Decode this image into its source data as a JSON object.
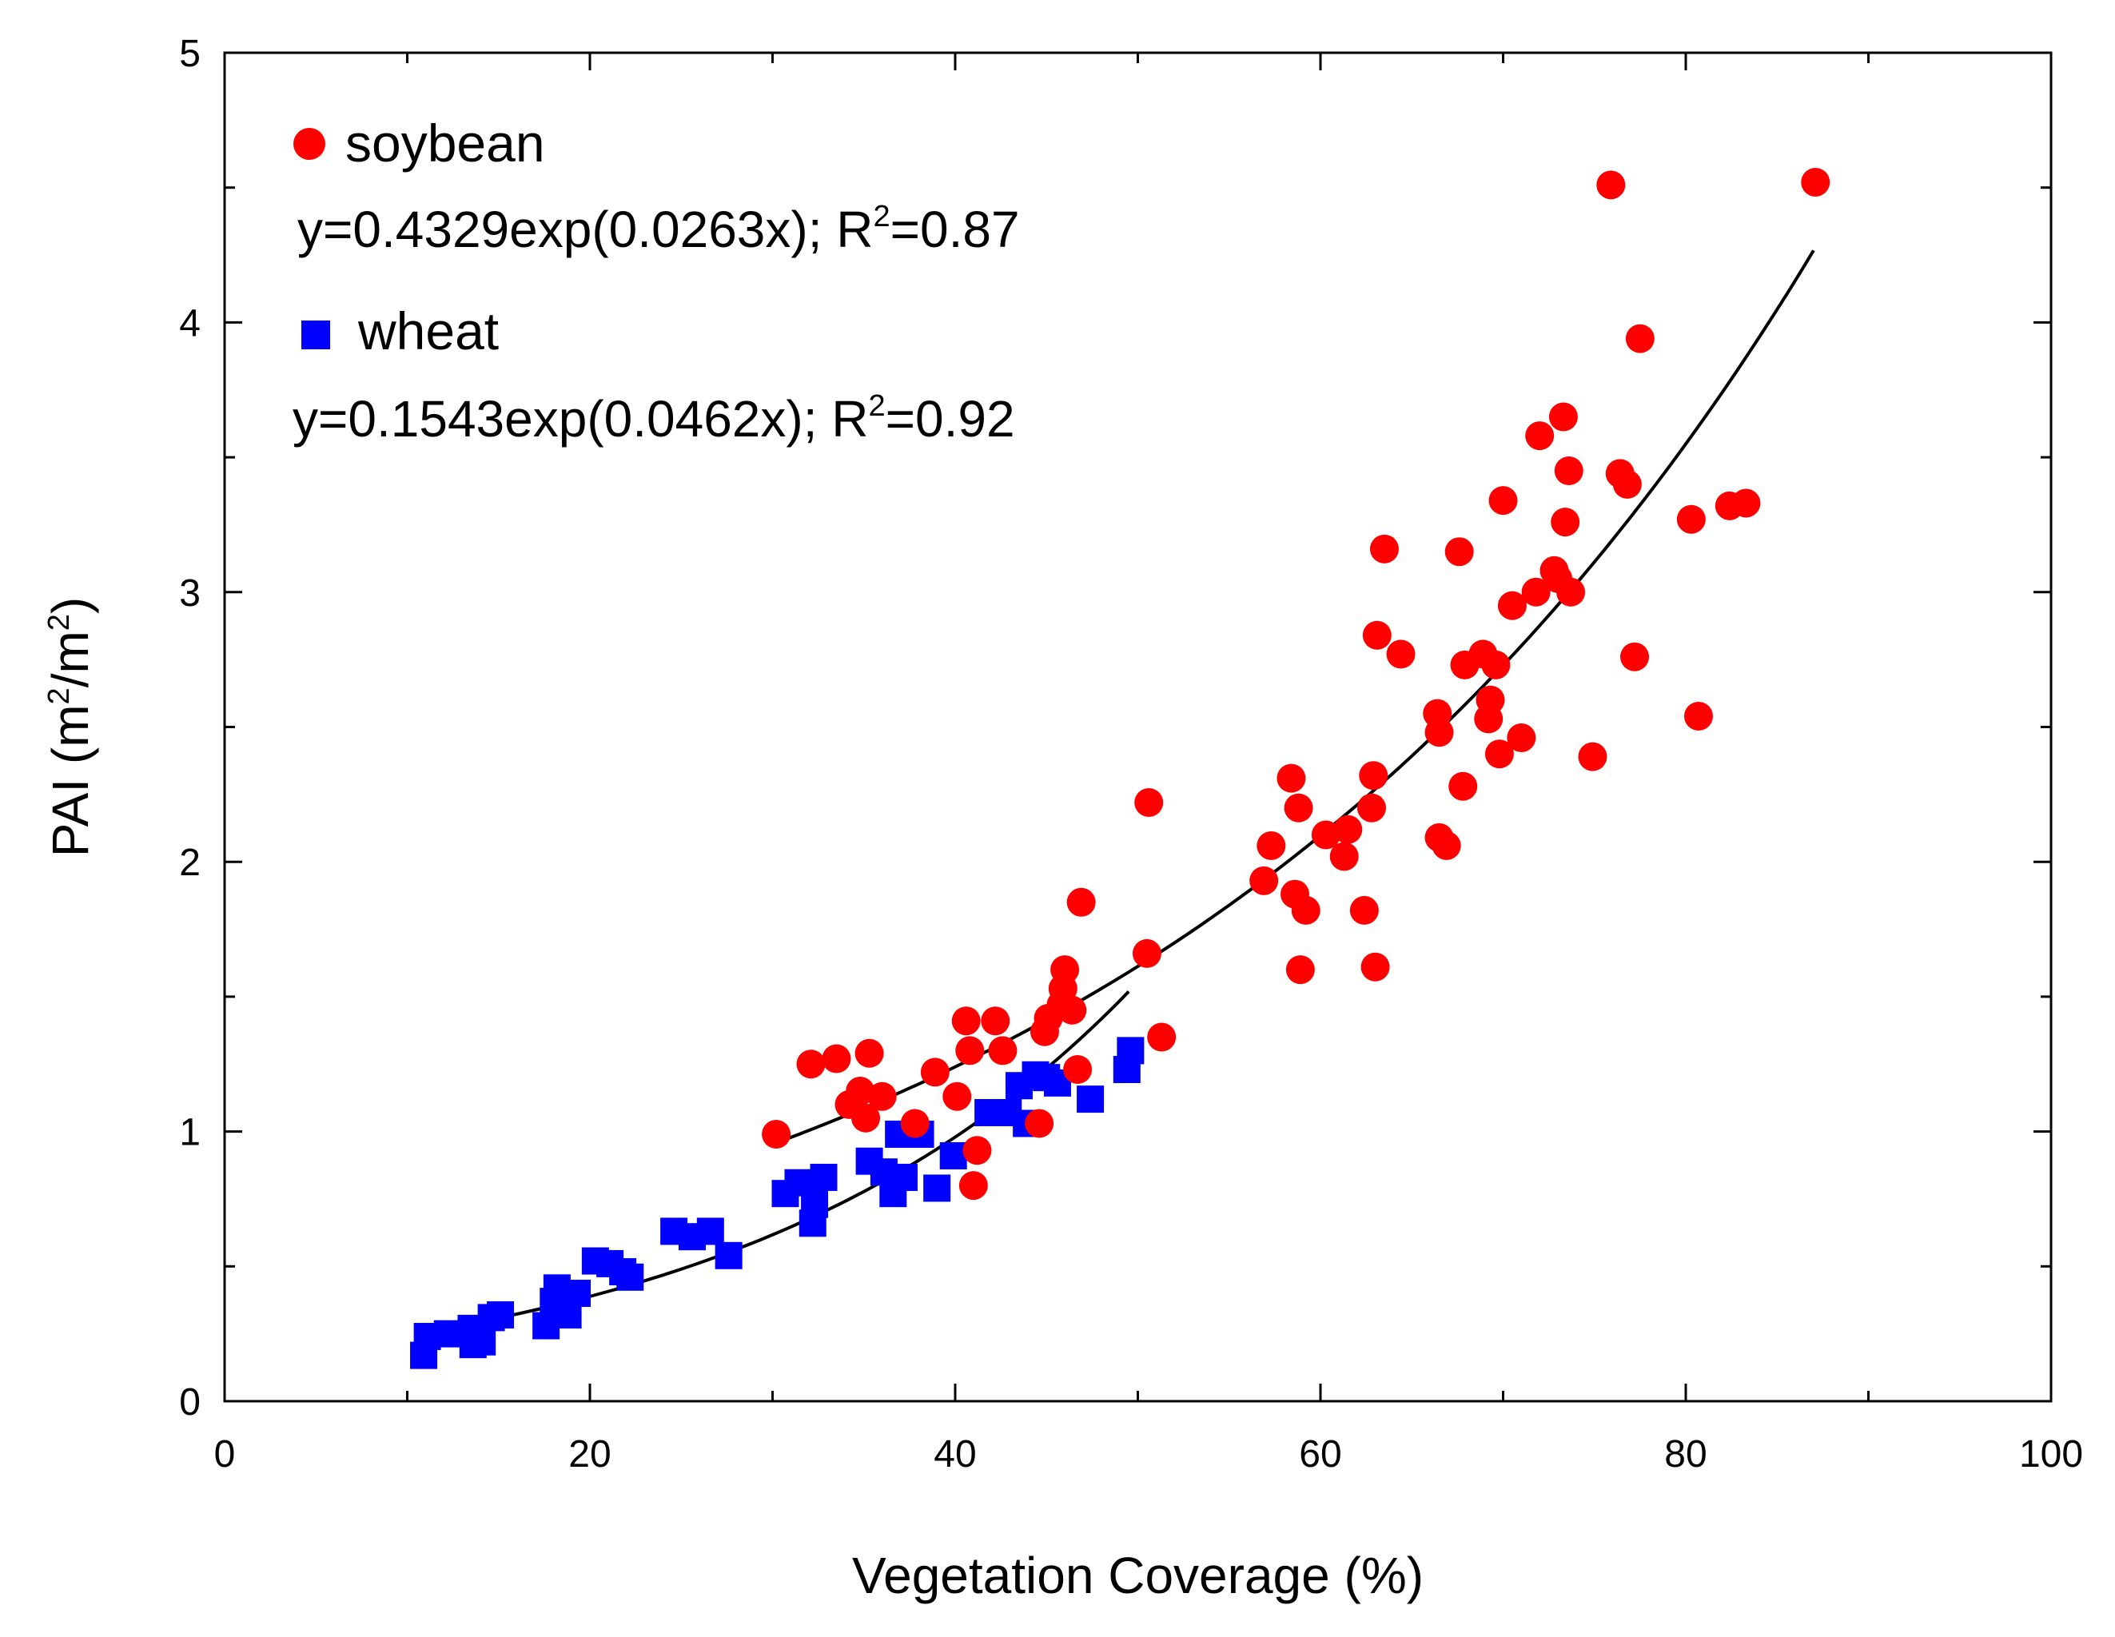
{
  "chart_data": {
    "type": "scatter",
    "title": "",
    "xlabel": "Vegetation Coverage (%)",
    "ylabel_main": "PAI (m",
    "ylabel_sup1": "2",
    "ylabel_mid": "/m",
    "ylabel_sup2": "2",
    "ylabel_end": ")",
    "xlim": [
      0,
      100
    ],
    "ylim": [
      0,
      5
    ],
    "x_ticks": [
      0,
      20,
      40,
      60,
      80,
      100
    ],
    "y_ticks": [
      0,
      1,
      2,
      3,
      4,
      5
    ],
    "x_minor_step": 10,
    "y_minor_step": 0.5,
    "legend_position": "top-left",
    "series": [
      {
        "name": "soybean",
        "marker": "circle",
        "color": "#ff0000",
        "fit": {
          "equation_prefix": "y=0.4329exp(0.0263x); R",
          "r2_sup": "2",
          "equation_suffix": "=0.87",
          "a": 0.4329,
          "b": 0.0263,
          "x_range": [
            30,
            87
          ]
        },
        "points": [
          [
            30.2,
            0.99
          ],
          [
            32.1,
            1.25
          ],
          [
            33.5,
            1.27
          ],
          [
            34.2,
            1.1
          ],
          [
            34.8,
            1.15
          ],
          [
            35.1,
            1.05
          ],
          [
            35.3,
            1.29
          ],
          [
            36.0,
            1.13
          ],
          [
            37.8,
            1.03
          ],
          [
            38.9,
            1.22
          ],
          [
            40.1,
            1.13
          ],
          [
            40.6,
            1.41
          ],
          [
            40.8,
            1.3
          ],
          [
            41.0,
            0.8
          ],
          [
            41.2,
            0.93
          ],
          [
            42.2,
            1.41
          ],
          [
            42.6,
            1.3
          ],
          [
            44.6,
            1.03
          ],
          [
            44.9,
            1.37
          ],
          [
            45.1,
            1.42
          ],
          [
            45.8,
            1.47
          ],
          [
            45.9,
            1.53
          ],
          [
            46.0,
            1.6
          ],
          [
            46.4,
            1.45
          ],
          [
            46.7,
            1.23
          ],
          [
            46.9,
            1.85
          ],
          [
            50.5,
            1.66
          ],
          [
            50.6,
            2.22
          ],
          [
            51.3,
            1.35
          ],
          [
            56.9,
            1.93
          ],
          [
            57.3,
            2.06
          ],
          [
            58.4,
            2.31
          ],
          [
            58.6,
            1.88
          ],
          [
            58.8,
            2.2
          ],
          [
            58.9,
            1.6
          ],
          [
            59.2,
            1.82
          ],
          [
            60.3,
            2.1
          ],
          [
            61.3,
            2.02
          ],
          [
            61.5,
            2.12
          ],
          [
            62.4,
            1.82
          ],
          [
            62.8,
            2.2
          ],
          [
            62.9,
            2.32
          ],
          [
            63.0,
            1.61
          ],
          [
            63.1,
            2.84
          ],
          [
            63.5,
            3.16
          ],
          [
            64.4,
            2.77
          ],
          [
            66.4,
            2.55
          ],
          [
            66.5,
            2.48
          ],
          [
            66.5,
            2.09
          ],
          [
            66.9,
            2.06
          ],
          [
            67.6,
            3.15
          ],
          [
            67.8,
            2.28
          ],
          [
            67.9,
            2.73
          ],
          [
            68.9,
            2.77
          ],
          [
            69.2,
            2.53
          ],
          [
            69.3,
            2.6
          ],
          [
            69.6,
            2.73
          ],
          [
            69.8,
            2.4
          ],
          [
            70.0,
            3.34
          ],
          [
            70.5,
            2.95
          ],
          [
            71.0,
            2.46
          ],
          [
            71.8,
            3.0
          ],
          [
            72.0,
            3.58
          ],
          [
            72.8,
            3.08
          ],
          [
            73.0,
            3.05
          ],
          [
            73.3,
            3.65
          ],
          [
            73.4,
            3.26
          ],
          [
            73.6,
            3.45
          ],
          [
            73.7,
            3.0
          ],
          [
            74.9,
            2.39
          ],
          [
            75.9,
            4.51
          ],
          [
            76.4,
            3.44
          ],
          [
            76.8,
            3.4
          ],
          [
            77.2,
            2.76
          ],
          [
            77.5,
            3.94
          ],
          [
            80.3,
            3.27
          ],
          [
            80.7,
            2.54
          ],
          [
            82.4,
            3.32
          ],
          [
            83.3,
            3.33
          ],
          [
            87.1,
            4.52
          ]
        ]
      },
      {
        "name": "wheat",
        "marker": "square",
        "color": "#0000ff",
        "fit": {
          "equation_prefix": "y=0.1543exp(0.0462x); R",
          "r2_sup": "2",
          "equation_suffix": "=0.92",
          "a": 0.1543,
          "b": 0.0462,
          "x_range": [
            11,
            49.5
          ]
        },
        "points": [
          [
            10.9,
            0.17
          ],
          [
            11.1,
            0.24
          ],
          [
            12.2,
            0.25
          ],
          [
            13.5,
            0.27
          ],
          [
            13.6,
            0.21
          ],
          [
            14.1,
            0.22
          ],
          [
            14.6,
            0.31
          ],
          [
            15.1,
            0.32
          ],
          [
            17.6,
            0.28
          ],
          [
            18.0,
            0.37
          ],
          [
            18.2,
            0.42
          ],
          [
            18.8,
            0.32
          ],
          [
            19.3,
            0.4
          ],
          [
            20.3,
            0.52
          ],
          [
            21.1,
            0.51
          ],
          [
            21.8,
            0.48
          ],
          [
            22.2,
            0.46
          ],
          [
            24.6,
            0.63
          ],
          [
            25.6,
            0.61
          ],
          [
            26.6,
            0.63
          ],
          [
            27.6,
            0.54
          ],
          [
            30.7,
            0.77
          ],
          [
            31.4,
            0.81
          ],
          [
            32.2,
            0.66
          ],
          [
            32.3,
            0.73
          ],
          [
            32.8,
            0.83
          ],
          [
            35.3,
            0.89
          ],
          [
            36.1,
            0.85
          ],
          [
            36.6,
            0.77
          ],
          [
            36.9,
            0.99
          ],
          [
            37.2,
            0.83
          ],
          [
            38.1,
            0.99
          ],
          [
            39.0,
            0.79
          ],
          [
            39.9,
            0.91
          ],
          [
            41.8,
            1.07
          ],
          [
            42.9,
            1.07
          ],
          [
            43.5,
            1.17
          ],
          [
            43.9,
            1.03
          ],
          [
            44.4,
            1.21
          ],
          [
            45.0,
            1.2
          ],
          [
            45.6,
            1.18
          ],
          [
            47.4,
            1.12
          ],
          [
            49.4,
            1.23
          ],
          [
            49.6,
            1.3
          ]
        ]
      }
    ]
  }
}
